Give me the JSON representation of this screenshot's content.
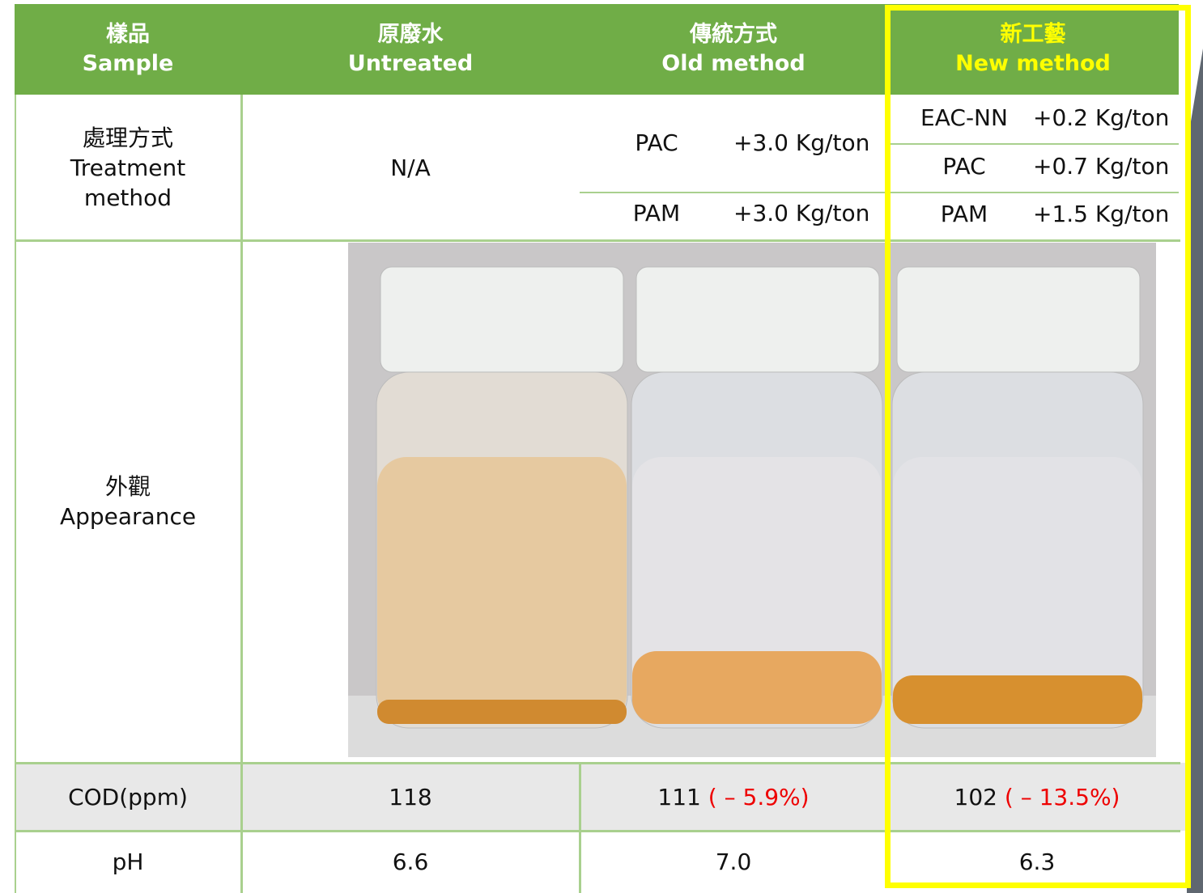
{
  "header": {
    "columns": [
      {
        "zh": "樣品",
        "en": "Sample"
      },
      {
        "zh": "原廢水",
        "en": "Untreated"
      },
      {
        "zh": "傳統方式",
        "en": "Old method"
      },
      {
        "zh": "新工藝",
        "en": "New method"
      }
    ]
  },
  "treatment": {
    "label_zh": "處理方式",
    "label_en": "Treatment method",
    "untreated": "N/A",
    "old": [
      {
        "agent": "PAC",
        "dose": "+3.0 Kg/ton"
      },
      {
        "agent": "PAM",
        "dose": "+3.0 Kg/ton"
      }
    ],
    "new": [
      {
        "agent": "EAC-NN",
        "dose": "+0.2 Kg/ton"
      },
      {
        "agent": "PAC",
        "dose": "+0.7 Kg/ton"
      },
      {
        "agent": "PAM",
        "dose": "+1.5 Kg/ton"
      }
    ]
  },
  "appearance": {
    "label_zh": "外觀",
    "label_en": "Appearance"
  },
  "cod": {
    "label": "COD(ppm)",
    "untreated": "118",
    "old": "111",
    "old_change": "( – 5.9%)",
    "new": "102",
    "new_change": "( – 13.5%)"
  },
  "ph": {
    "label": "pH",
    "untreated": "6.6",
    "old": "7.0",
    "new": "6.3"
  }
}
